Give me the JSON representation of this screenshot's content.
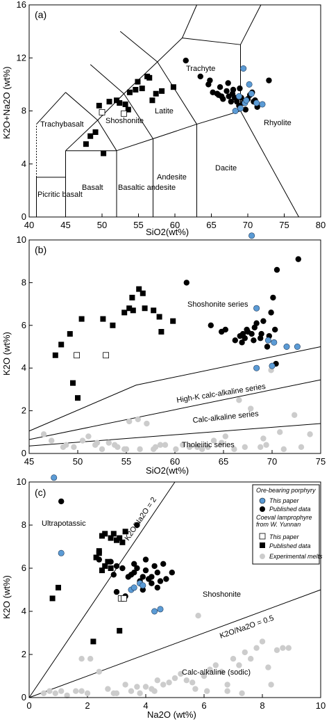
{
  "chart_data": [
    {
      "type": "scatter",
      "panel_label": "(a)",
      "xlabel": "SiO2(wt%)",
      "ylabel": "K2O+Na2O (wt%)",
      "xlim": [
        40,
        80
      ],
      "ylim": [
        0,
        16
      ],
      "xticks": [
        "40",
        "45",
        "50",
        "55",
        "60",
        "65",
        "70",
        "75",
        "80"
      ],
      "yticks": [
        "0",
        "4",
        "8",
        "12",
        "16"
      ],
      "field_labels": [
        "Picritic basalt",
        "Basalt",
        "Basaltic andesite",
        "Andesite",
        "Dacite",
        "Rhyolite",
        "Trachyte",
        "Latite",
        "Shoshonite",
        "Trachybasalt"
      ],
      "series": [
        {
          "name": "Ore-bearing porphyry (This paper)",
          "marker": "circle",
          "color": "#5b9bd5",
          "x": [
            69.4,
            70.2,
            68.8,
            69.6,
            71.2,
            72.0,
            69.0,
            68.3,
            69.8,
            70.5
          ],
          "y": [
            11.2,
            10.0,
            9.1,
            8.6,
            8.6,
            8.5,
            8.2,
            8.0,
            8.8,
            9.3
          ]
        },
        {
          "name": "Ore-bearing porphyry (Published data)",
          "marker": "circle",
          "color": "#000000",
          "x": [
            61.5,
            63.5,
            64.6,
            65.2,
            65.8,
            66.2,
            66.4,
            66.6,
            67.1,
            67.4,
            67.7,
            67.9,
            68.2,
            68.5,
            68.8,
            69.1,
            69.4,
            69.7,
            70.0,
            70.3,
            70.6,
            71.0,
            71.3,
            72.9,
            64.8,
            67.3,
            68.0,
            66.0,
            68.9,
            70.8
          ],
          "y": [
            11.8,
            10.6,
            10.0,
            9.4,
            9.3,
            9.8,
            9.1,
            8.9,
            9.5,
            9.1,
            8.7,
            9.3,
            9.0,
            8.7,
            8.4,
            9.0,
            8.6,
            8.1,
            8.9,
            9.2,
            9.4,
            8.8,
            8.3,
            10.3,
            10.3,
            10.1,
            9.6,
            9.2,
            9.7,
            8.7
          ]
        },
        {
          "name": "Coeval lamprophyre from W. Yunnan (This paper)",
          "marker": "square",
          "color": "#ffffff",
          "x": [
            50.0,
            53.0
          ],
          "y": [
            7.9,
            7.8
          ]
        },
        {
          "name": "Coeval lamprophyre from W. Yunnan (Published data)",
          "marker": "square",
          "color": "#000000",
          "x": [
            47.8,
            48.4,
            49.1,
            50.2,
            51.0,
            52.4,
            53.2,
            53.8,
            54.6,
            54.9,
            55.5,
            56.2,
            56.5,
            56.9,
            57.4,
            58.2,
            59.8,
            49.6,
            52.0,
            53.6
          ],
          "y": [
            5.5,
            6.1,
            6.4,
            4.8,
            8.7,
            8.6,
            8.5,
            9.4,
            9.6,
            10.2,
            9.7,
            10.6,
            10.5,
            8.8,
            9.3,
            9.5,
            9.8,
            8.4,
            8.8,
            8.1
          ]
        }
      ]
    },
    {
      "type": "scatter",
      "panel_label": "(b)",
      "xlabel": "SiO2(wt%)",
      "ylabel": "K2O (wt%)",
      "xlim": [
        45,
        75
      ],
      "ylim": [
        0,
        10
      ],
      "xticks": [
        "45",
        "50",
        "55",
        "60",
        "65",
        "70",
        "75"
      ],
      "yticks": [
        "0",
        "2",
        "4",
        "6",
        "8",
        "10"
      ],
      "field_labels": [
        "Shoshonite series",
        "High-K calc-alkaline series",
        "Calc-alkaline series",
        "Tholeiitic series"
      ],
      "series": [
        {
          "name": "Ore-bearing porphyry (This paper)",
          "marker": "circle",
          "color": "#5b9bd5",
          "x": [
            67.9,
            68.4,
            69.6,
            70.0,
            71.5,
            72.6,
            68.4,
            70.2
          ],
          "y": [
            10.2,
            6.8,
            5.3,
            4.1,
            5.0,
            5.0,
            4.0,
            5.2
          ]
        },
        {
          "name": "Ore-bearing porphyry (Published data)",
          "marker": "circle",
          "color": "#000000",
          "x": [
            61.2,
            63.7,
            64.8,
            65.2,
            66.2,
            66.7,
            67.0,
            67.4,
            67.9,
            68.1,
            68.4,
            68.8,
            69.1,
            69.5,
            69.9,
            70.3,
            70.5,
            72.7,
            70.4,
            66.9,
            67.5,
            68.2,
            68.9,
            69.7,
            70.1,
            67.2
          ],
          "y": [
            8.0,
            6.0,
            5.7,
            5.8,
            5.3,
            5.5,
            5.6,
            5.8,
            5.6,
            5.3,
            6.1,
            5.4,
            6.2,
            5.0,
            6.6,
            5.8,
            8.6,
            9.1,
            4.2,
            5.2,
            5.7,
            5.9,
            5.6,
            5.5,
            7.3,
            5.4
          ]
        },
        {
          "name": "Coeval lamprophyre from W. Yunnan (This paper)",
          "marker": "square",
          "color": "#ffffff",
          "x": [
            49.9,
            52.9
          ],
          "y": [
            4.6,
            4.6
          ]
        },
        {
          "name": "Coeval lamprophyre from W. Yunnan (Published data)",
          "marker": "square",
          "color": "#000000",
          "x": [
            47.7,
            48.3,
            49.5,
            50.0,
            50.4,
            52.6,
            53.6,
            54.8,
            55.3,
            55.6,
            55.7,
            56.3,
            56.7,
            56.9,
            57.8,
            58.4,
            58.6,
            59.8,
            49.2
          ],
          "y": [
            4.6,
            5.1,
            3.3,
            2.6,
            6.3,
            6.3,
            6.0,
            6.6,
            6.8,
            7.3,
            6.7,
            7.7,
            7.5,
            6.8,
            6.7,
            6.4,
            5.7,
            6.2,
            5.6
          ]
        },
        {
          "name": "Experimental melts",
          "marker": "circle",
          "color": "#cccccc",
          "x": [
            46.5,
            47.3,
            48.8,
            49.6,
            50.5,
            51.1,
            51.8,
            52.5,
            53.2,
            54.1,
            54.8,
            55.3,
            56.2,
            57.1,
            58.0,
            59.0,
            60.1,
            61.5,
            62.8,
            64.0,
            65.2,
            66.6,
            67.8,
            69.1,
            69.9,
            70.8,
            72.3,
            73.9,
            48.5,
            53.8,
            56.4,
            60.8,
            63.4,
            66.1,
            68.8,
            71.2,
            57.8,
            62.3,
            64.8,
            67.2,
            69.4,
            73.0,
            52.0,
            55.0,
            58.5
          ],
          "y": [
            0.9,
            0.6,
            0.4,
            0.3,
            0.6,
            0.8,
            0.4,
            0.2,
            0.5,
            0.3,
            0.2,
            1.5,
            1.6,
            1.4,
            0.3,
            0.4,
            0.2,
            0.3,
            0.2,
            0.6,
            0.8,
            2.5,
            2.1,
            0.7,
            3.9,
            1.0,
            1.8,
            0.9,
            0.3,
            0.4,
            0.2,
            0.4,
            0.3,
            0.2,
            0.3,
            0.2,
            0.2,
            0.3,
            0.5,
            0.3,
            0.4,
            0.3,
            0.5,
            0.2,
            0.4
          ]
        }
      ]
    },
    {
      "type": "scatter",
      "panel_label": "(c)",
      "xlabel": "Na2O (wt%)",
      "ylabel": "K2O (wt%)",
      "xlim": [
        0,
        10
      ],
      "ylim": [
        0,
        10
      ],
      "xticks": [
        "0",
        "2",
        "4",
        "6",
        "8",
        "10"
      ],
      "yticks": [
        "0",
        "2",
        "4",
        "6",
        "8",
        "10"
      ],
      "field_labels": [
        "Ultrapotassic",
        "Shoshonite",
        "Calc-alkaline (sodic)"
      ],
      "reference_lines": [
        {
          "label": "K2O/Na2O = 2",
          "ratio": 2
        },
        {
          "label": "K2O/Na2O = 0.5",
          "ratio": 0.5
        }
      ],
      "legend": {
        "placement": "top-right",
        "group1_title": "Ore-bearing porphyry",
        "group2_title": "Coeval lamprophyre from W. Yunnan",
        "entries": [
          "This paper",
          "Published data",
          "This paper",
          "Published data",
          "Experimental melts"
        ]
      },
      "series": [
        {
          "name": "Ore-bearing porphyry (This paper)",
          "marker": "circle",
          "color": "#5b9bd5",
          "x": [
            0.85,
            1.1,
            3.5,
            3.6,
            3.8,
            4.3,
            4.5,
            3.9
          ],
          "y": [
            10.2,
            6.7,
            5.0,
            5.1,
            5.3,
            4.0,
            4.1,
            5.2
          ]
        },
        {
          "name": "Ore-bearing porphyry (Published data)",
          "marker": "circle",
          "color": "#000000",
          "x": [
            1.1,
            2.4,
            2.8,
            3.0,
            3.2,
            3.4,
            3.5,
            3.6,
            3.7,
            3.8,
            3.9,
            4.0,
            4.1,
            4.2,
            4.3,
            4.4,
            4.5,
            4.6,
            4.7,
            4.9,
            3.0,
            3.3,
            3.7,
            4.0,
            4.4,
            2.9,
            3.6,
            4.2,
            3.9
          ],
          "y": [
            9.1,
            6.4,
            6.3,
            6.1,
            6.0,
            5.6,
            5.7,
            5.8,
            6.0,
            5.4,
            5.6,
            5.9,
            5.5,
            5.6,
            6.1,
            5.8,
            5.4,
            6.2,
            5.5,
            5.8,
            4.9,
            4.7,
            8.0,
            6.4,
            5.1,
            5.7,
            6.2,
            5.3,
            5.0
          ]
        },
        {
          "name": "Coeval lamprophyre from W. Yunnan (This paper)",
          "marker": "square",
          "color": "#ffffff",
          "x": [
            3.15,
            3.25
          ],
          "y": [
            4.6,
            4.6
          ]
        },
        {
          "name": "Coeval lamprophyre from W. Yunnan (Published data)",
          "marker": "square",
          "color": "#000000",
          "x": [
            0.8,
            1.0,
            2.2,
            2.3,
            2.4,
            2.5,
            2.6,
            2.7,
            2.8,
            2.9,
            3.0,
            3.1,
            3.2,
            3.3,
            3.1,
            2.4,
            2.6,
            2.8,
            2.5
          ],
          "y": [
            4.6,
            5.1,
            2.6,
            6.5,
            6.7,
            7.5,
            7.6,
            6.3,
            7.4,
            7.6,
            7.3,
            7.4,
            7.2,
            7.7,
            3.1,
            6.8,
            6.1,
            6.0,
            5.9
          ]
        },
        {
          "name": "Experimental melts",
          "marker": "circle",
          "color": "#cccccc",
          "x": [
            0.5,
            0.7,
            0.9,
            1.1,
            1.3,
            1.6,
            1.8,
            2.0,
            2.1,
            2.4,
            2.7,
            3.0,
            3.3,
            3.5,
            3.8,
            4.0,
            4.2,
            4.4,
            4.6,
            4.8,
            5.0,
            5.2,
            5.4,
            5.6,
            5.8,
            6.0,
            6.2,
            6.4,
            6.6,
            6.8,
            7.0,
            7.2,
            7.4,
            7.6,
            7.8,
            8.0,
            8.2,
            8.5,
            8.7,
            8.9,
            4.3,
            5.7,
            6.1,
            6.8,
            7.3,
            8.3,
            1.8,
            2.9,
            3.7
          ],
          "y": [
            0.2,
            0.3,
            0.2,
            0.3,
            0.1,
            0.3,
            1.8,
            0.2,
            1.8,
            1.2,
            0.4,
            0.2,
            0.6,
            0.3,
            0.2,
            0.5,
            0.4,
            0.8,
            0.6,
            0.7,
            0.9,
            1.1,
            0.8,
            0.7,
            3.8,
            1.0,
            1.3,
            1.5,
            1.2,
            0.6,
            1.8,
            1.5,
            2.1,
            1.8,
            2.3,
            2.6,
            1.4,
            2.2,
            2.3,
            2.3,
            0.3,
            0.4,
            0.3,
            0.3,
            0.2,
            0.6,
            0.3,
            0.2,
            0.5
          ]
        }
      ]
    }
  ]
}
